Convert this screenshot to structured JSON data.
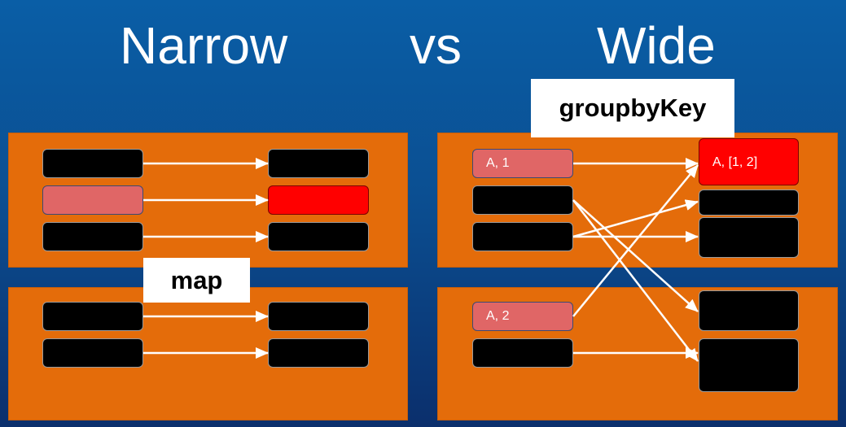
{
  "title": {
    "narrow": "Narrow",
    "vs": "vs",
    "wide": "Wide"
  },
  "labels": {
    "map": "map",
    "groupbyKey": "groupbyKey"
  },
  "wide": {
    "source_a1": "A, 1",
    "source_a2": "A, 2",
    "target_a12": "A, [1, 2]"
  },
  "colors": {
    "background_top": "#0a5ea6",
    "background_bottom": "#0b2f6c",
    "partition": "#e46c0a",
    "record": "#000000",
    "highlighted_source": "#e06666",
    "highlighted_target": "#ff0000",
    "arrow": "#ffffff"
  }
}
